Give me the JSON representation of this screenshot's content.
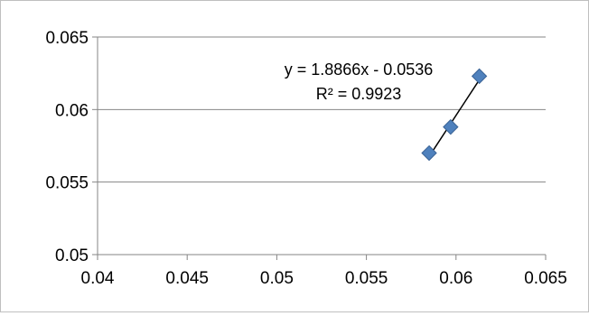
{
  "chart_data": {
    "type": "scatter",
    "title": "",
    "xlabel": "",
    "ylabel": "",
    "xlim": [
      0.04,
      0.065
    ],
    "ylim": [
      0.05,
      0.065
    ],
    "x_ticks": [
      "0.04",
      "0.045",
      "0.05",
      "0.055",
      "0.06",
      "0.065"
    ],
    "y_ticks": [
      "0.05",
      "0.055",
      "0.06",
      "0.065"
    ],
    "x_tick_values": [
      0.04,
      0.045,
      0.05,
      0.055,
      0.06,
      0.065
    ],
    "y_tick_values": [
      0.05,
      0.055,
      0.06,
      0.065
    ],
    "grid": "horizontal",
    "legend": "none",
    "series": [
      {
        "points": [
          {
            "x": 0.0585,
            "y": 0.057
          },
          {
            "x": 0.0597,
            "y": 0.0588
          },
          {
            "x": 0.0613,
            "y": 0.0623
          }
        ],
        "marker": "diamond",
        "color": "#4f81bd"
      }
    ],
    "trendline": {
      "type": "linear",
      "slope": 1.8866,
      "intercept": -0.0536,
      "x_range": [
        0.0585,
        0.0613
      ],
      "color": "#000000",
      "equation_label": "y = 1.8866x - 0.0536",
      "r2_label": "R² = 0.9923"
    }
  }
}
